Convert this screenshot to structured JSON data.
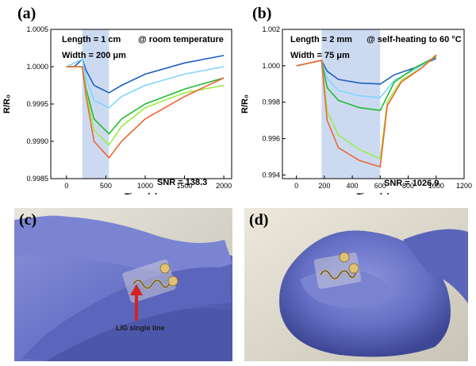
{
  "panels": {
    "a": "(a)",
    "b": "(b)",
    "c": "(c)",
    "d": "(d)"
  },
  "photo_c": {
    "annotation": "LIG single line"
  },
  "colors": {
    "series": [
      "#1f5fbf",
      "#7fd6ff",
      "#22bb33",
      "#99ee44",
      "#ee6633"
    ],
    "shade": "#c6d6ef",
    "glove": "#6a75c9",
    "arrow": "#d22222"
  },
  "chart_data": [
    {
      "type": "line",
      "panel": "a",
      "xlabel": "Time (s)",
      "ylabel": "R/R₀",
      "xlim": [
        -200,
        2100
      ],
      "ylim": [
        0.9985,
        1.0005
      ],
      "xticks": [
        0,
        500,
        1000,
        1500,
        2000
      ],
      "yticks": [
        0.9985,
        0.999,
        0.9995,
        1.0,
        1.0005
      ],
      "ytick_labels": [
        "0.9985",
        "0.9990",
        "0.9995",
        "1.0000",
        "1.0005"
      ],
      "shaded_region": [
        200,
        540
      ],
      "annotations": [
        "Length = 1 cm",
        "@ room temperature",
        "Width = 200 μm",
        "SNR = 138.3"
      ],
      "series": [
        {
          "color": "#1f5fbf",
          "points": [
            [
              0,
              1.0
            ],
            [
              100,
              1.0
            ],
            [
              200,
              1.0001
            ],
            [
              250,
              0.99995
            ],
            [
              350,
              0.99975
            ],
            [
              540,
              0.99965
            ],
            [
              700,
              0.99975
            ],
            [
              1000,
              0.9999
            ],
            [
              1500,
              1.00005
            ],
            [
              2000,
              1.00015
            ]
          ]
        },
        {
          "color": "#7fd6ff",
          "points": [
            [
              0,
              1.0
            ],
            [
              200,
              1.0001
            ],
            [
              250,
              0.99985
            ],
            [
              350,
              0.99955
            ],
            [
              540,
              0.99945
            ],
            [
              700,
              0.9996
            ],
            [
              1000,
              0.99975
            ],
            [
              1500,
              0.9999
            ],
            [
              2000,
              1.0
            ]
          ]
        },
        {
          "color": "#22bb33",
          "points": [
            [
              0,
              1.0
            ],
            [
              200,
              1.0
            ],
            [
              250,
              0.9997
            ],
            [
              350,
              0.9993
            ],
            [
              540,
              0.9991
            ],
            [
              700,
              0.9993
            ],
            [
              1000,
              0.9995
            ],
            [
              1500,
              0.9997
            ],
            [
              2000,
              0.99985
            ]
          ]
        },
        {
          "color": "#99ee44",
          "points": [
            [
              0,
              1.0
            ],
            [
              200,
              1.0
            ],
            [
              250,
              0.99965
            ],
            [
              350,
              0.99915
            ],
            [
              540,
              0.99895
            ],
            [
              700,
              0.9992
            ],
            [
              1000,
              0.99945
            ],
            [
              1500,
              0.99965
            ],
            [
              2000,
              0.99975
            ]
          ]
        },
        {
          "color": "#ee6633",
          "points": [
            [
              0,
              1.0
            ],
            [
              200,
              1.0
            ],
            [
              250,
              0.9996
            ],
            [
              350,
              0.999
            ],
            [
              540,
              0.99878
            ],
            [
              700,
              0.999
            ],
            [
              1000,
              0.9993
            ],
            [
              1500,
              0.9996
            ],
            [
              2000,
              0.99985
            ]
          ]
        }
      ]
    },
    {
      "type": "line",
      "panel": "b",
      "xlabel": "Time (s)",
      "ylabel": "R/R₀",
      "xlim": [
        -100,
        1200
      ],
      "ylim": [
        0.9938,
        1.002
      ],
      "xticks": [
        0,
        200,
        400,
        600,
        800,
        1000,
        1200
      ],
      "yticks": [
        0.994,
        0.996,
        0.998,
        1.0,
        1.002
      ],
      "ytick_labels": [
        "0.994",
        "0.996",
        "0.998",
        "1.000",
        "1.002"
      ],
      "shaded_region": [
        180,
        600
      ],
      "annotations": [
        "Length = 2 mm",
        "@ self-heating to 60 °C",
        "Width = 75 μm",
        "SNR = 1026.9"
      ],
      "series": [
        {
          "color": "#1f5fbf",
          "points": [
            [
              0,
              1.0
            ],
            [
              180,
              1.0003
            ],
            [
              220,
              0.9997
            ],
            [
              300,
              0.99925
            ],
            [
              450,
              0.99905
            ],
            [
              600,
              0.999
            ],
            [
              700,
              0.9995
            ],
            [
              850,
              0.9999
            ],
            [
              1000,
              1.0004
            ]
          ]
        },
        {
          "color": "#7fd6ff",
          "points": [
            [
              0,
              1.0
            ],
            [
              180,
              1.0003
            ],
            [
              220,
              0.9993
            ],
            [
              300,
              0.99865
            ],
            [
              450,
              0.99835
            ],
            [
              600,
              0.99825
            ],
            [
              700,
              0.9992
            ],
            [
              850,
              0.9998
            ],
            [
              1000,
              1.0005
            ]
          ]
        },
        {
          "color": "#22bb33",
          "points": [
            [
              0,
              1.0
            ],
            [
              180,
              1.0003
            ],
            [
              220,
              0.9988
            ],
            [
              300,
              0.9981
            ],
            [
              450,
              0.9977
            ],
            [
              600,
              0.99755
            ],
            [
              700,
              0.9991
            ],
            [
              850,
              0.9999
            ],
            [
              1000,
              1.0005
            ]
          ]
        },
        {
          "color": "#99ee44",
          "points": [
            [
              0,
              1.0
            ],
            [
              180,
              1.0003
            ],
            [
              220,
              0.9975
            ],
            [
              300,
              0.9962
            ],
            [
              450,
              0.9954
            ],
            [
              600,
              0.9949
            ],
            [
              650,
              0.998
            ],
            [
              750,
              0.9992
            ],
            [
              900,
              0.9999
            ],
            [
              1000,
              1.0006
            ]
          ]
        },
        {
          "color": "#ee6633",
          "points": [
            [
              0,
              1.0
            ],
            [
              180,
              1.0003
            ],
            [
              220,
              0.997
            ],
            [
              300,
              0.9955
            ],
            [
              450,
              0.9948
            ],
            [
              600,
              0.99445
            ],
            [
              650,
              0.9978
            ],
            [
              750,
              0.9991
            ],
            [
              900,
              0.9999
            ],
            [
              1000,
              1.0006
            ]
          ]
        }
      ]
    }
  ]
}
